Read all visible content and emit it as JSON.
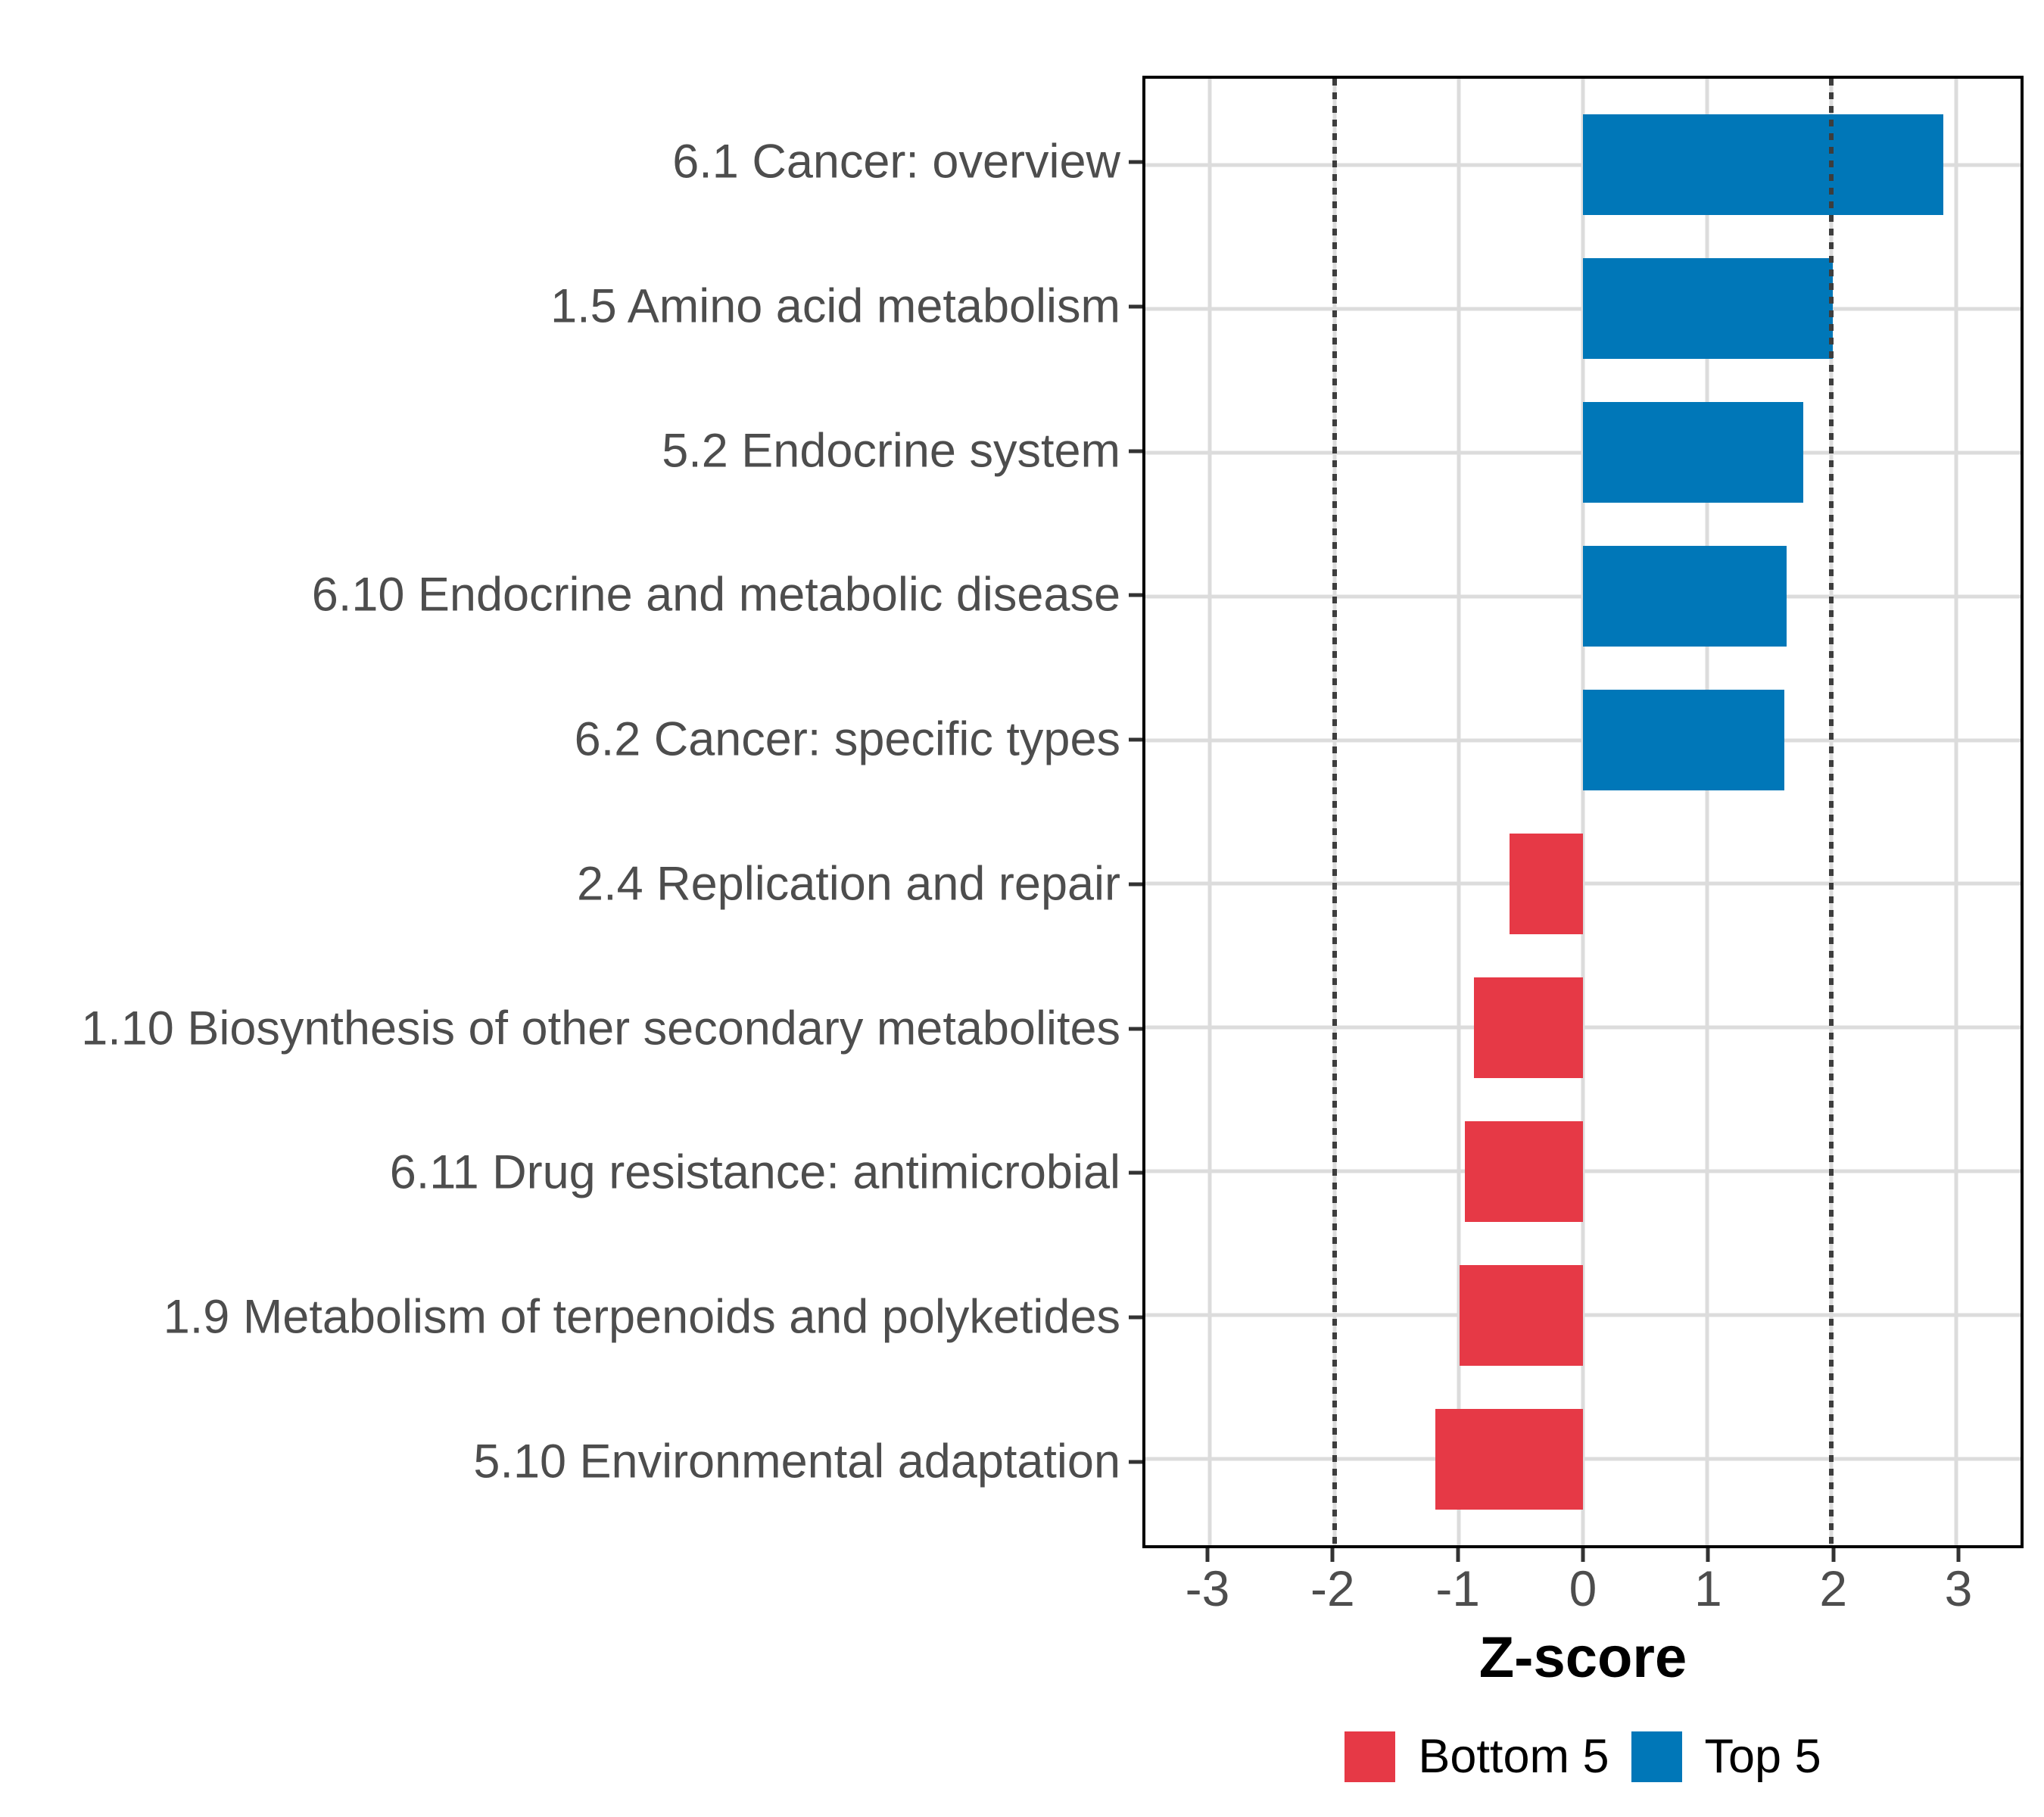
{
  "chart_data": {
    "type": "bar",
    "orientation": "horizontal",
    "title": "",
    "xlabel": "Z-score",
    "ylabel": "",
    "categories": [
      "6.1 Cancer: overview",
      "1.5 Amino acid metabolism",
      "5.2 Endocrine system",
      "6.10 Endocrine and metabolic disease",
      "6.2 Cancer: specific types",
      "2.4 Replication and repair",
      "1.10 Biosynthesis of other secondary metabolites",
      "6.11 Drug resistance: antimicrobial",
      "1.9 Metabolism of terpenoids and polyketides",
      "5.10 Environmental adaptation"
    ],
    "series": [
      {
        "name": "Top 5",
        "color": "#0077B8",
        "values": [
          2.9,
          2.01,
          1.77,
          1.64,
          1.62,
          null,
          null,
          null,
          null,
          null
        ]
      },
      {
        "name": "Bottom 5",
        "color": "#E63946",
        "values": [
          null,
          null,
          null,
          null,
          null,
          -0.59,
          -0.88,
          -0.95,
          -0.99,
          -1.19
        ]
      }
    ],
    "rows": [
      {
        "label": "6.1 Cancer: overview",
        "value": 2.9,
        "group": "Top 5"
      },
      {
        "label": "1.5 Amino acid metabolism",
        "value": 2.01,
        "group": "Top 5"
      },
      {
        "label": "5.2 Endocrine system",
        "value": 1.77,
        "group": "Top 5"
      },
      {
        "label": "6.10 Endocrine and metabolic disease",
        "value": 1.64,
        "group": "Top 5"
      },
      {
        "label": "6.2 Cancer: specific types",
        "value": 1.62,
        "group": "Top 5"
      },
      {
        "label": "2.4 Replication and repair",
        "value": -0.59,
        "group": "Bottom 5"
      },
      {
        "label": "1.10 Biosynthesis of other secondary metabolites",
        "value": -0.88,
        "group": "Bottom 5"
      },
      {
        "label": "6.11 Drug resistance: antimicrobial",
        "value": -0.95,
        "group": "Bottom 5"
      },
      {
        "label": "1.9 Metabolism of terpenoids and polyketides",
        "value": -0.99,
        "group": "Bottom 5"
      },
      {
        "label": "5.10 Environmental adaptation",
        "value": -1.19,
        "group": "Bottom 5"
      }
    ],
    "x_axis": {
      "title": "Z-score",
      "ticks": [
        -3,
        -2,
        -1,
        0,
        1,
        2,
        3
      ],
      "tick_labels": [
        "-3",
        "-2",
        "-1",
        "0",
        "1",
        "2",
        "3"
      ]
    },
    "xlim": [
      -3.52,
      3.52
    ],
    "reference_lines": [
      -2,
      2
    ],
    "grid": true,
    "bar_width_fraction": 0.7,
    "y_expand": 0.6,
    "legend_position": "bottom",
    "legend": [
      {
        "label": "Bottom 5",
        "color": "#E63946"
      },
      {
        "label": "Top 5",
        "color": "#0077B8"
      }
    ],
    "colors": {
      "top5": "#0077B8",
      "bottom5": "#E63946",
      "gridline": "#DCDCDC",
      "reference_line": "#3D3D3D",
      "axis_text": "#4D4D4D",
      "legend_text": "#000000",
      "panel_border": "#000000",
      "background": "#FFFFFF"
    }
  }
}
